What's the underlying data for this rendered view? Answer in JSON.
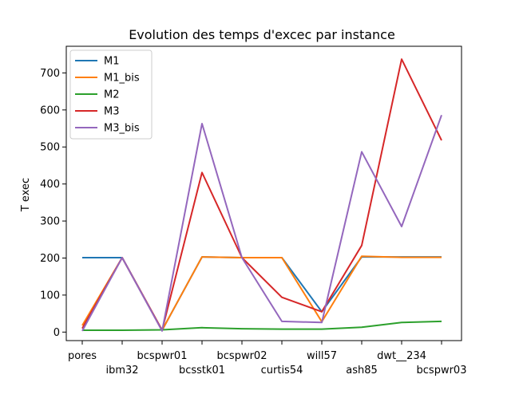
{
  "chart_data": {
    "type": "line",
    "title": "Evolution des temps d'excec par instance",
    "xlabel": "",
    "ylabel": "T exec",
    "ylim": [
      -23,
      772
    ],
    "yticks": [
      0,
      100,
      200,
      300,
      400,
      500,
      600,
      700
    ],
    "categories": [
      "pores",
      "ibm32",
      "bcspwr01",
      "bcsstk01",
      "bcspwr02",
      "curtis54",
      "will57",
      "ash85",
      "dwt__234",
      "bcspwr03"
    ],
    "legend_position": "upper-left",
    "grid": false,
    "series": [
      {
        "name": "M1",
        "color": "#1f77b4",
        "values": [
          201,
          201,
          5,
          203,
          201,
          201,
          55,
          203,
          203,
          203
        ]
      },
      {
        "name": "M1_bis",
        "color": "#ff7f0e",
        "values": [
          18,
          201,
          5,
          203,
          201,
          201,
          28,
          205,
          202,
          202
        ]
      },
      {
        "name": "M2",
        "color": "#2ca02c",
        "values": [
          5,
          5,
          6,
          12,
          9,
          8,
          8,
          13,
          26,
          29
        ]
      },
      {
        "name": "M3",
        "color": "#d62728",
        "values": [
          10,
          201,
          5,
          431,
          201,
          94,
          55,
          234,
          737,
          518
        ]
      },
      {
        "name": "M3_bis",
        "color": "#9467bd",
        "values": [
          3,
          201,
          3,
          563,
          201,
          29,
          26,
          487,
          285,
          586
        ]
      }
    ]
  }
}
